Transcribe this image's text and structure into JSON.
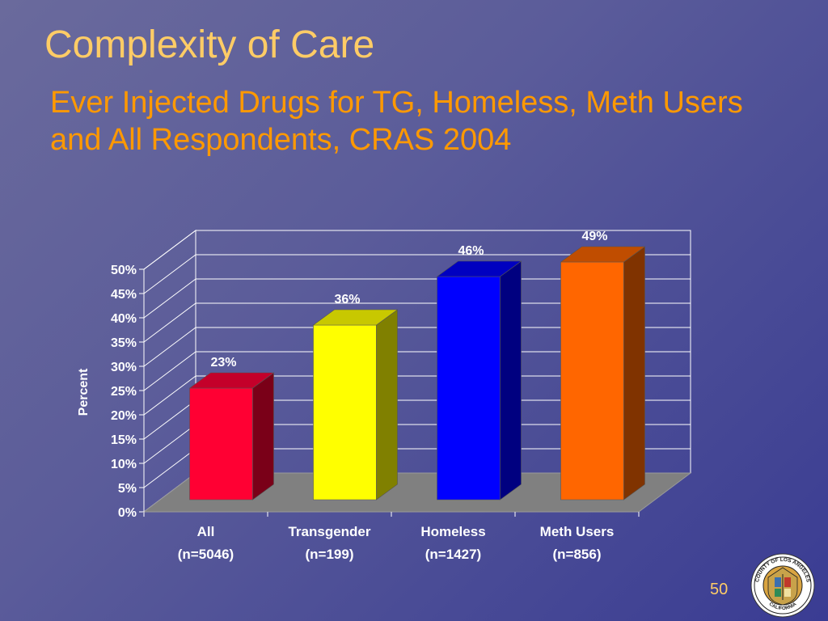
{
  "slide": {
    "title": "Complexity of Care",
    "subtitle": "Ever Injected Drugs for TG, Homeless, Meth Users and All Respondents, CRAS 2004",
    "page_number": "50",
    "seal_text": "COUNTY OF LOS ANGELES · CALIFORNIA"
  },
  "chart_data": {
    "type": "bar",
    "title": "",
    "xlabel": "",
    "ylabel": "Percent",
    "ylim": [
      0,
      50
    ],
    "yticks": [
      "0%",
      "5%",
      "10%",
      "15%",
      "20%",
      "25%",
      "30%",
      "35%",
      "40%",
      "45%",
      "50%"
    ],
    "grid": true,
    "three_d": true,
    "categories": [
      {
        "name": "All",
        "n": "(n=5046)"
      },
      {
        "name": "Transgender",
        "n": "(n=199)"
      },
      {
        "name": "Homeless",
        "n": "(n=1427)"
      },
      {
        "name": "Meth Users",
        "n": "(n=856)"
      }
    ],
    "values": [
      23,
      36,
      46,
      49
    ],
    "data_labels": [
      "23%",
      "36%",
      "46%",
      "49%"
    ],
    "colors": [
      {
        "front": "#ff0033",
        "side": "#7a0018",
        "top": "#c4002a"
      },
      {
        "front": "#ffff00",
        "side": "#808000",
        "top": "#c8c800"
      },
      {
        "front": "#0000ff",
        "side": "#000080",
        "top": "#0000c0"
      },
      {
        "front": "#ff6600",
        "side": "#803300",
        "top": "#c04d00"
      }
    ]
  }
}
